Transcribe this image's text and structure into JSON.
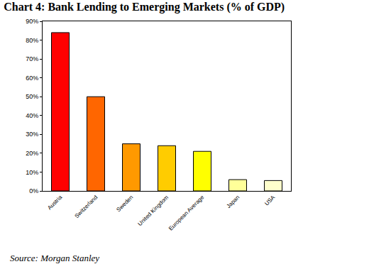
{
  "chart_data": {
    "type": "bar",
    "title": "Chart 4: Bank Lending to Emerging Markets (% of GDP)",
    "categories": [
      "Austria",
      "Switzerland",
      "Sweden",
      "United Kingdom",
      "European Average",
      "Japan",
      "USA"
    ],
    "values": [
      84,
      50,
      25,
      24,
      21,
      6,
      5.5
    ],
    "colors": [
      "#ff0000",
      "#ff6600",
      "#ff9900",
      "#ffcc00",
      "#ffff00",
      "#ffff99",
      "#ffffcc"
    ],
    "ylim": [
      0,
      90
    ],
    "yticks": [
      {
        "value": 0,
        "label": "0%"
      },
      {
        "value": 10,
        "label": "10%"
      },
      {
        "value": 20,
        "label": "20%"
      },
      {
        "value": 30,
        "label": "30%"
      },
      {
        "value": 40,
        "label": "40%"
      },
      {
        "value": 50,
        "label": "50%"
      },
      {
        "value": 60,
        "label": "60%"
      },
      {
        "value": 70,
        "label": "70%"
      },
      {
        "value": 80,
        "label": "80%"
      },
      {
        "value": 90,
        "label": "90%"
      }
    ],
    "grid": false,
    "annotations": [
      "Source: Morgan Stanley"
    ]
  }
}
